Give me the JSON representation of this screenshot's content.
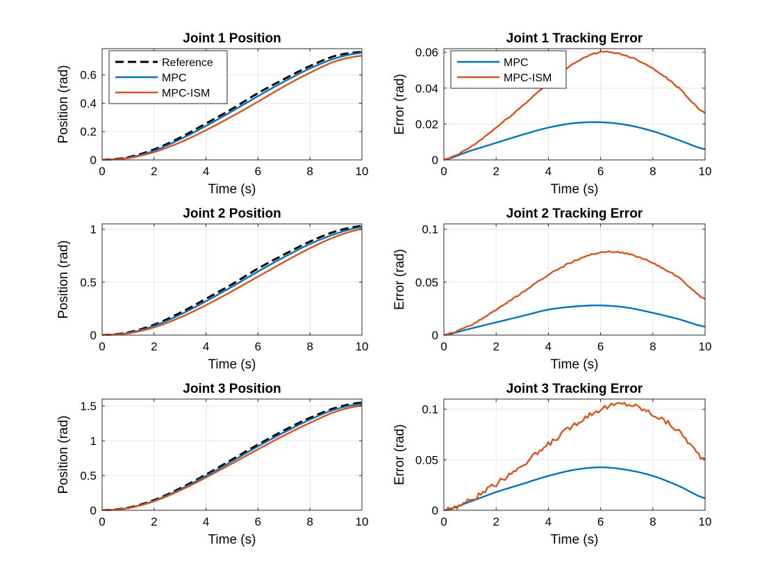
{
  "figure": {
    "colors": {
      "Reference": "#000000",
      "MPC": "#0072BD",
      "MPC-ISM": "#D95319"
    }
  },
  "chart_data": [
    {
      "type": "line",
      "title": "Joint 1 Position",
      "xlabel": "Time (s)",
      "ylabel": "Position (rad)",
      "xlim": [
        0,
        10
      ],
      "ylim": [
        0,
        0.785
      ],
      "xticks": [
        0,
        2,
        4,
        6,
        8,
        10
      ],
      "yticks": [
        0,
        0.2,
        0.4,
        0.6
      ],
      "ytick_labels": [
        "0",
        "0.2",
        "0.4",
        "0.6"
      ],
      "legend": [
        "Reference",
        "MPC",
        "MPC-ISM"
      ],
      "legend_position": "top-left",
      "x": [
        0,
        1,
        2,
        3,
        4,
        5,
        6,
        7,
        8,
        9,
        10
      ],
      "series": [
        {
          "name": "Reference",
          "style": "dashed",
          "values": [
            0,
            0.019,
            0.074,
            0.157,
            0.257,
            0.36,
            0.471,
            0.57,
            0.662,
            0.735,
            0.762
          ]
        },
        {
          "name": "MPC",
          "style": "solid",
          "values": [
            0,
            0.015,
            0.065,
            0.145,
            0.24,
            0.343,
            0.45,
            0.552,
            0.645,
            0.718,
            0.756
          ]
        },
        {
          "name": "MPC-ISM",
          "style": "solid",
          "values": [
            0,
            0.012,
            0.055,
            0.123,
            0.21,
            0.307,
            0.411,
            0.518,
            0.615,
            0.697,
            0.735
          ]
        }
      ]
    },
    {
      "type": "line",
      "title": "Joint 1 Tracking Error",
      "xlabel": "Time (s)",
      "ylabel": "Error (rad)",
      "xlim": [
        0,
        10
      ],
      "ylim": [
        0,
        0.062
      ],
      "xticks": [
        0,
        2,
        4,
        6,
        8,
        10
      ],
      "yticks": [
        0,
        0.02,
        0.04,
        0.06
      ],
      "ytick_labels": [
        "0",
        "0.02",
        "0.04",
        "0.06"
      ],
      "legend": [
        "MPC",
        "MPC-ISM"
      ],
      "legend_position": "top-left",
      "x": [
        0,
        1,
        2,
        3,
        4,
        5,
        6,
        7,
        8,
        9,
        10
      ],
      "series": [
        {
          "name": "MPC",
          "style": "solid",
          "values": [
            0,
            0.005,
            0.0095,
            0.014,
            0.018,
            0.0205,
            0.021,
            0.0195,
            0.016,
            0.011,
            0.006
          ]
        },
        {
          "name": "MPC-ISM",
          "style": "solid",
          "values": [
            0,
            0.007,
            0.018,
            0.03,
            0.043,
            0.054,
            0.06,
            0.058,
            0.051,
            0.04,
            0.026
          ]
        }
      ]
    },
    {
      "type": "line",
      "title": "Joint 2 Position",
      "xlabel": "Time (s)",
      "ylabel": "Position (rad)",
      "xlim": [
        0,
        10
      ],
      "ylim": [
        0,
        1.05
      ],
      "xticks": [
        0,
        2,
        4,
        6,
        8,
        10
      ],
      "yticks": [
        0,
        0.5,
        1
      ],
      "ytick_labels": [
        "0",
        "0.5",
        "1"
      ],
      "x": [
        0,
        1,
        2,
        3,
        4,
        5,
        6,
        7,
        8,
        9,
        10
      ],
      "series": [
        {
          "name": "Reference",
          "style": "dashed",
          "values": [
            0,
            0.025,
            0.098,
            0.21,
            0.343,
            0.48,
            0.628,
            0.76,
            0.883,
            0.98,
            1.03
          ]
        },
        {
          "name": "MPC",
          "style": "solid",
          "values": [
            0,
            0.02,
            0.087,
            0.193,
            0.32,
            0.457,
            0.6,
            0.736,
            0.86,
            0.957,
            1.02
          ]
        },
        {
          "name": "MPC-ISM",
          "style": "solid",
          "values": [
            0,
            0.016,
            0.073,
            0.166,
            0.283,
            0.414,
            0.552,
            0.69,
            0.82,
            0.93,
            1.0
          ]
        }
      ]
    },
    {
      "type": "line",
      "title": "Joint 2 Tracking Error",
      "xlabel": "Time (s)",
      "ylabel": "Error (rad)",
      "xlim": [
        0,
        10
      ],
      "ylim": [
        0,
        0.105
      ],
      "xticks": [
        0,
        2,
        4,
        6,
        8,
        10
      ],
      "yticks": [
        0,
        0.05,
        0.1
      ],
      "ytick_labels": [
        "0",
        "0.05",
        "0.1"
      ],
      "x": [
        0,
        1,
        2,
        3,
        4,
        5,
        6,
        7,
        8,
        9,
        10
      ],
      "series": [
        {
          "name": "MPC",
          "style": "solid",
          "values": [
            0,
            0.006,
            0.012,
            0.018,
            0.024,
            0.027,
            0.028,
            0.026,
            0.021,
            0.015,
            0.008
          ]
        },
        {
          "name": "MPC-ISM",
          "style": "solid",
          "values": [
            0,
            0.009,
            0.024,
            0.04,
            0.057,
            0.07,
            0.078,
            0.077,
            0.068,
            0.054,
            0.034
          ]
        }
      ]
    },
    {
      "type": "line",
      "title": "Joint 3 Position",
      "xlabel": "Time (s)",
      "ylabel": "Position (rad)",
      "xlim": [
        0,
        10
      ],
      "ylim": [
        0,
        1.6
      ],
      "xticks": [
        0,
        2,
        4,
        6,
        8,
        10
      ],
      "yticks": [
        0,
        0.5,
        1,
        1.5
      ],
      "ytick_labels": [
        "0",
        "0.5",
        "1",
        "1.5"
      ],
      "x": [
        0,
        1,
        2,
        3,
        4,
        5,
        6,
        7,
        8,
        9,
        10
      ],
      "series": [
        {
          "name": "Reference",
          "style": "dashed",
          "values": [
            0,
            0.037,
            0.147,
            0.315,
            0.515,
            0.73,
            0.945,
            1.15,
            1.33,
            1.475,
            1.55
          ]
        },
        {
          "name": "MPC",
          "style": "solid",
          "values": [
            0,
            0.032,
            0.137,
            0.3,
            0.495,
            0.705,
            0.92,
            1.12,
            1.305,
            1.455,
            1.53
          ]
        },
        {
          "name": "MPC-ISM",
          "style": "solid",
          "values": [
            0,
            0.03,
            0.13,
            0.285,
            0.472,
            0.672,
            0.877,
            1.075,
            1.258,
            1.42,
            1.505
          ]
        }
      ]
    },
    {
      "type": "line",
      "title": "Joint 3 Tracking Error",
      "xlabel": "Time (s)",
      "ylabel": "Error (rad)",
      "xlim": [
        0,
        10
      ],
      "ylim": [
        0,
        0.11
      ],
      "xticks": [
        0,
        2,
        4,
        6,
        8,
        10
      ],
      "yticks": [
        0,
        0.05,
        0.1
      ],
      "ytick_labels": [
        "0",
        "0.05",
        "0.1"
      ],
      "x": [
        0,
        1,
        2,
        3,
        4,
        5,
        6,
        7,
        8,
        9,
        10
      ],
      "series": [
        {
          "name": "MPC",
          "style": "solid",
          "values": [
            0,
            0.0085,
            0.018,
            0.026,
            0.034,
            0.04,
            0.0425,
            0.04,
            0.034,
            0.024,
            0.012
          ]
        },
        {
          "name": "MPC-ISM",
          "style": "solid",
          "values": [
            0,
            0.01,
            0.026,
            0.045,
            0.065,
            0.085,
            0.1,
            0.105,
            0.095,
            0.078,
            0.05
          ]
        }
      ]
    }
  ]
}
